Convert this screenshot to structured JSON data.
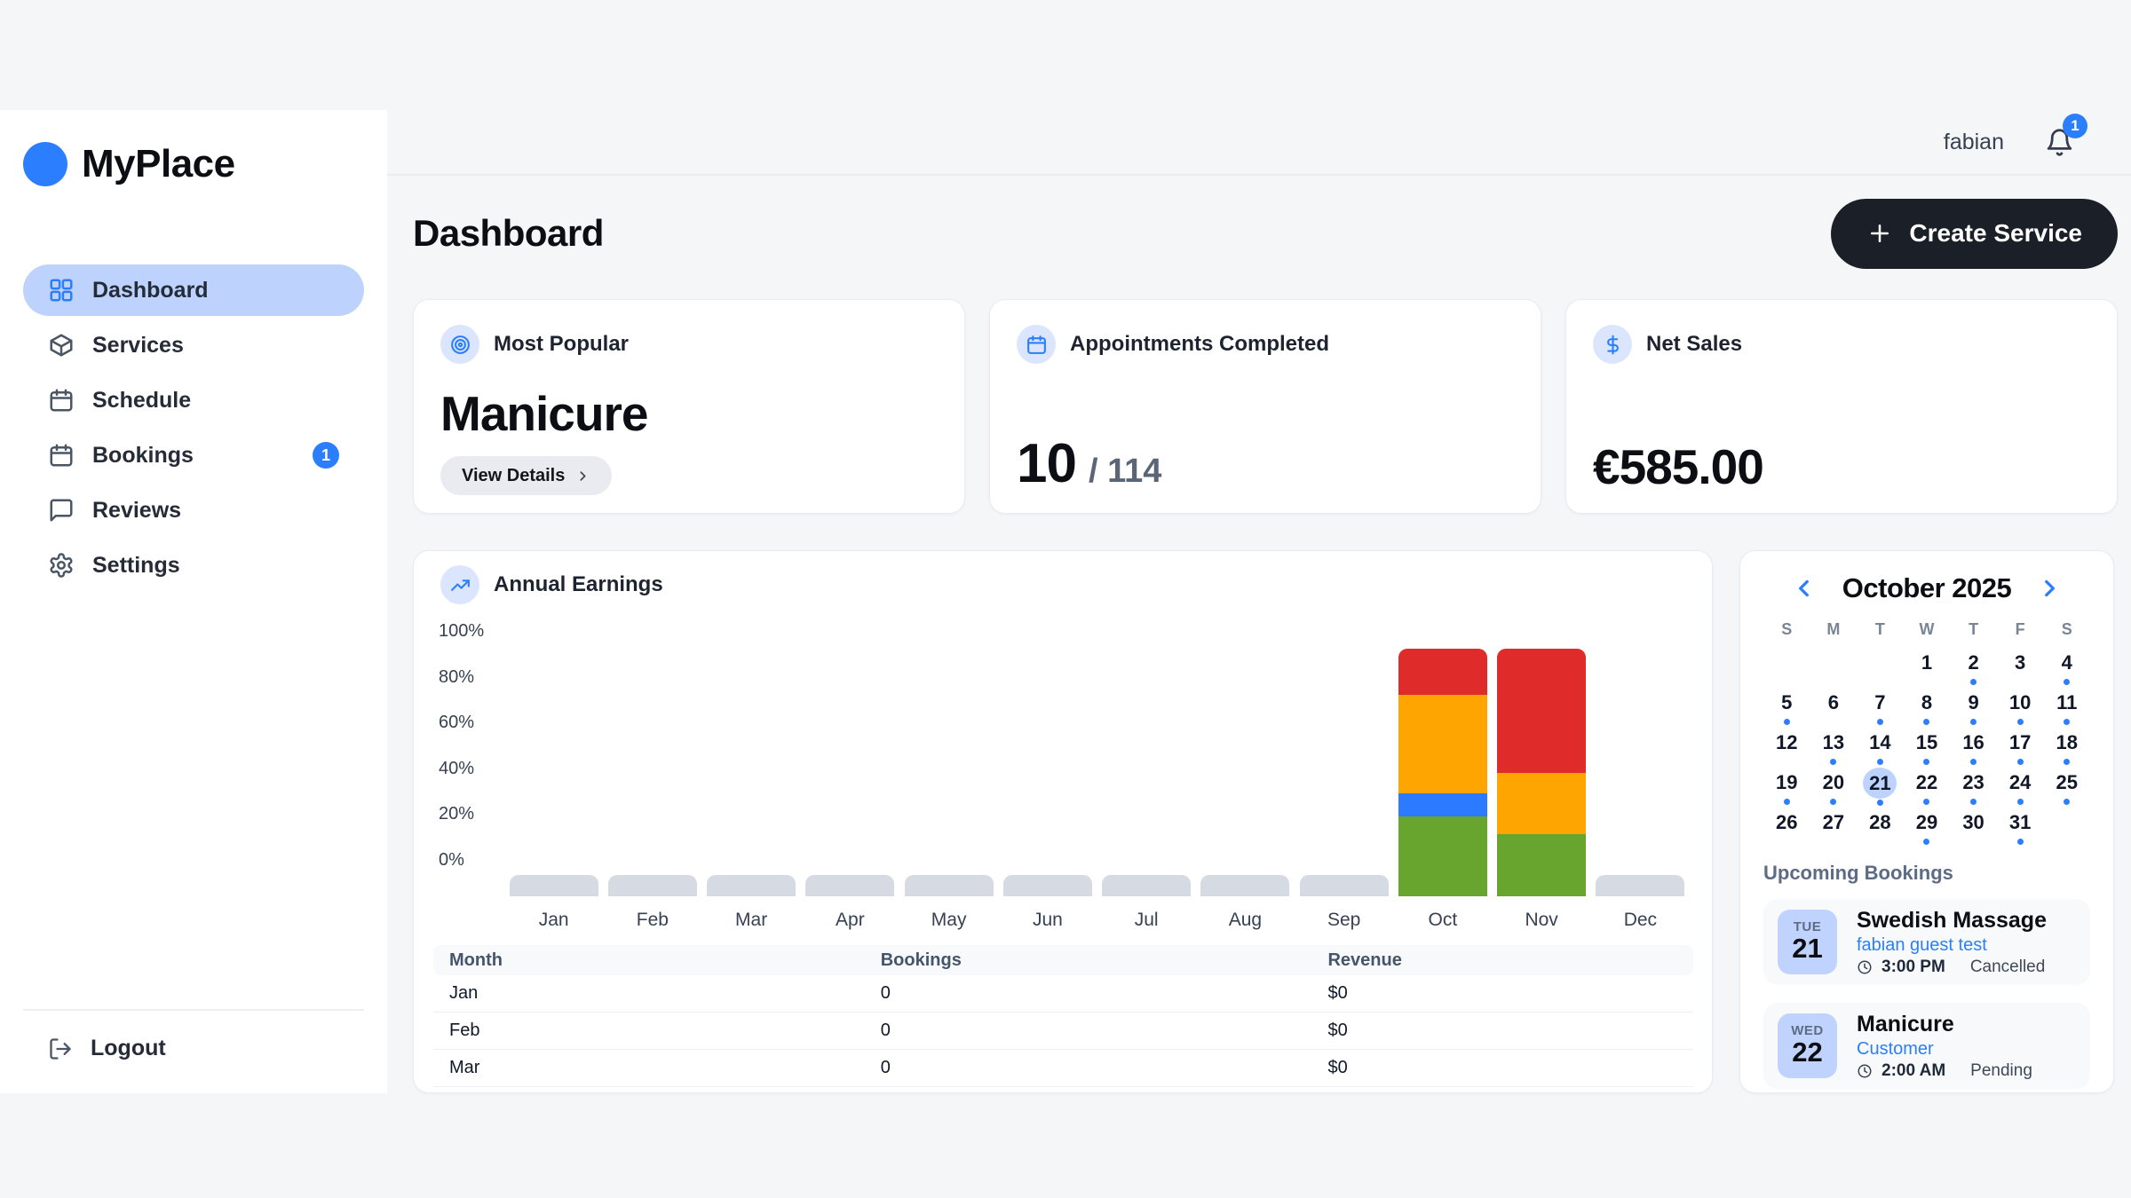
{
  "brand": {
    "name": "MyPlace"
  },
  "topbar": {
    "username": "fabian",
    "notification_count": "1"
  },
  "sidebar": {
    "items": [
      {
        "label": "Dashboard",
        "icon": "grid",
        "active": true
      },
      {
        "label": "Services",
        "icon": "package",
        "active": false
      },
      {
        "label": "Schedule",
        "icon": "calendar",
        "active": false
      },
      {
        "label": "Bookings",
        "icon": "calendar",
        "active": false,
        "badge": "1"
      },
      {
        "label": "Reviews",
        "icon": "message",
        "active": false
      },
      {
        "label": "Settings",
        "icon": "gear",
        "active": false
      }
    ],
    "logout_label": "Logout"
  },
  "header": {
    "title": "Dashboard",
    "create_button_label": "Create Service"
  },
  "stats": [
    {
      "label": "Most Popular",
      "icon": "target",
      "value": "Manicure",
      "button_label": "View Details"
    },
    {
      "label": "Appointments Completed",
      "icon": "calendar",
      "value": "10",
      "total": "/ 114"
    },
    {
      "label": "Net Sales",
      "icon": "dollar",
      "value": "€585.00"
    }
  ],
  "chart_data": {
    "type": "bar",
    "stacked": true,
    "title": "Annual Earnings",
    "categories": [
      "Jan",
      "Feb",
      "Mar",
      "Apr",
      "May",
      "Jun",
      "Jul",
      "Aug",
      "Sep",
      "Oct",
      "Nov",
      "Dec"
    ],
    "ytick_labels": [
      "0%",
      "20%",
      "40%",
      "60%",
      "80%",
      "100%"
    ],
    "ylim": [
      0,
      100
    ],
    "unit": "%",
    "series": [
      {
        "name": "green",
        "color": "#67a52f",
        "values": [
          0,
          0,
          0,
          0,
          0,
          0,
          0,
          0,
          0,
          35,
          27,
          0
        ]
      },
      {
        "name": "blue",
        "color": "#2b7aff",
        "values": [
          0,
          0,
          0,
          0,
          0,
          0,
          0,
          0,
          0,
          10,
          0,
          0
        ]
      },
      {
        "name": "orange",
        "color": "#ffa502",
        "values": [
          0,
          0,
          0,
          0,
          0,
          0,
          0,
          0,
          0,
          43,
          27,
          0
        ]
      },
      {
        "name": "red",
        "color": "#e02b2b",
        "values": [
          0,
          0,
          0,
          0,
          0,
          0,
          0,
          0,
          0,
          20,
          54,
          0
        ]
      }
    ],
    "legend": null,
    "grid": false
  },
  "table": {
    "headers": [
      "Month",
      "Bookings",
      "Revenue"
    ],
    "rows": [
      [
        "Jan",
        "0",
        "$0"
      ],
      [
        "Feb",
        "0",
        "$0"
      ],
      [
        "Mar",
        "0",
        "$0"
      ]
    ]
  },
  "calendar": {
    "title": "October 2025",
    "weekdays": [
      "S",
      "M",
      "T",
      "W",
      "T",
      "F",
      "S"
    ],
    "start_offset": 3,
    "days_in_month": 31,
    "selected_day": 21,
    "dotted_days": [
      2,
      4,
      5,
      7,
      8,
      9,
      10,
      11,
      13,
      14,
      15,
      16,
      17,
      18,
      19,
      20,
      21,
      22,
      23,
      24,
      25,
      29,
      31
    ]
  },
  "bookings": {
    "heading": "Upcoming Bookings",
    "items": [
      {
        "day": "TUE",
        "date": "21",
        "title": "Swedish Massage",
        "customer": "fabian guest test",
        "time": "3:00 PM",
        "status": "Cancelled"
      },
      {
        "day": "WED",
        "date": "22",
        "title": "Manicure",
        "customer": "Customer",
        "time": "2:00 AM",
        "status": "Pending"
      }
    ]
  },
  "colors": {
    "accent_blue": "#2b7fff",
    "active_pill": "#bdd3fe",
    "page_bg": "#f5f6f8",
    "dark_button": "#1b1f27",
    "ghost_bar": "#d5dae3",
    "bar_green": "#67a52f",
    "bar_blue": "#2b7aff",
    "bar_orange": "#ffa502",
    "bar_red": "#e02b2b"
  }
}
